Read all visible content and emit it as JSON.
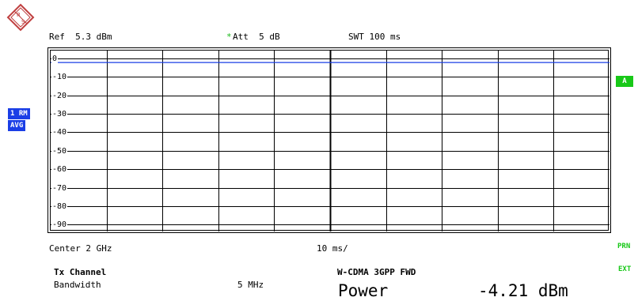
{
  "logo": {
    "text_r": "R",
    "text_s": "S"
  },
  "header": {
    "ref": "Ref  5.3 dBm",
    "att_star": "*",
    "att": "Att  5 dB",
    "swt": "SWT 100 ms"
  },
  "y_axis": {
    "labels": [
      "0",
      "-10",
      "-20",
      "-30",
      "-40",
      "-50",
      "-60",
      "-70",
      "-80",
      "-90"
    ],
    "range": [
      -95,
      2
    ]
  },
  "left_badges": {
    "trace": "1 RM",
    "avg": "AVG"
  },
  "right_badges": {
    "a": "A",
    "prn": "PRN",
    "ext": "EXT"
  },
  "footer": {
    "center": "Center 2 GHz",
    "div": "10 ms/",
    "tx_channel": "Tx Channel",
    "bandwidth_label": "Bandwidth",
    "bandwidth_value": "5 MHz",
    "standard": "W-CDMA 3GPP FWD",
    "power_label": "Power",
    "power_value": "-4.21 dBm"
  },
  "colors": {
    "trace": "#1a3ee6",
    "badge": "#1a3ee6",
    "green": "#18c818"
  },
  "chart_data": {
    "type": "line",
    "series": [
      {
        "values": [
          -2.2,
          -2.2,
          -2.2,
          -2.2,
          -2.2,
          -2.2,
          -2.2,
          -2.2,
          -2.2,
          -2.2,
          -2.2
        ]
      }
    ],
    "x_divisions": 10,
    "ylim": [
      -95,
      2
    ],
    "grid": true
  }
}
